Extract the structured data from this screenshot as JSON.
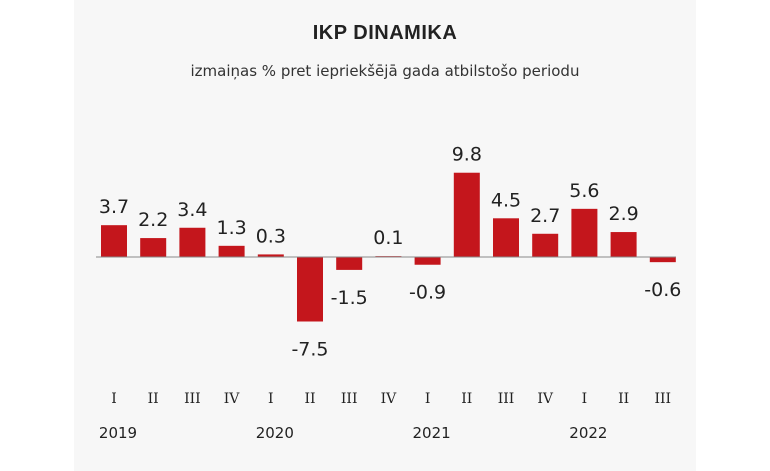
{
  "chart_data": {
    "type": "bar",
    "title": "IKP DINAMIKA",
    "subtitle": "izmaiņas % pret iepriekšējā gada atbilstošo periodu",
    "categories": [
      "I",
      "II",
      "III",
      "IV",
      "I",
      "II",
      "III",
      "IV",
      "I",
      "II",
      "III",
      "IV",
      "I",
      "II",
      "III"
    ],
    "years": [
      {
        "label": "2019",
        "start_index": 0
      },
      {
        "label": "2020",
        "start_index": 4
      },
      {
        "label": "2021",
        "start_index": 8
      },
      {
        "label": "2022",
        "start_index": 12
      }
    ],
    "values": [
      3.7,
      2.2,
      3.4,
      1.3,
      0.3,
      -7.5,
      -1.5,
      0.1,
      -0.9,
      9.8,
      4.5,
      2.7,
      5.6,
      2.9,
      -0.6
    ],
    "value_labels": [
      "3.7",
      "2.2",
      "3.4",
      "1.3",
      "0.3",
      "-7.5",
      "-1.5",
      "0.1",
      "-0.9",
      "9.8",
      "4.5",
      "2.7",
      "5.6",
      "2.9",
      "-0.6"
    ],
    "ylim": [
      -7.5,
      9.8
    ],
    "bar_color": "#c4161c",
    "axis_color": "#888888",
    "grid": false,
    "legend": "none"
  }
}
